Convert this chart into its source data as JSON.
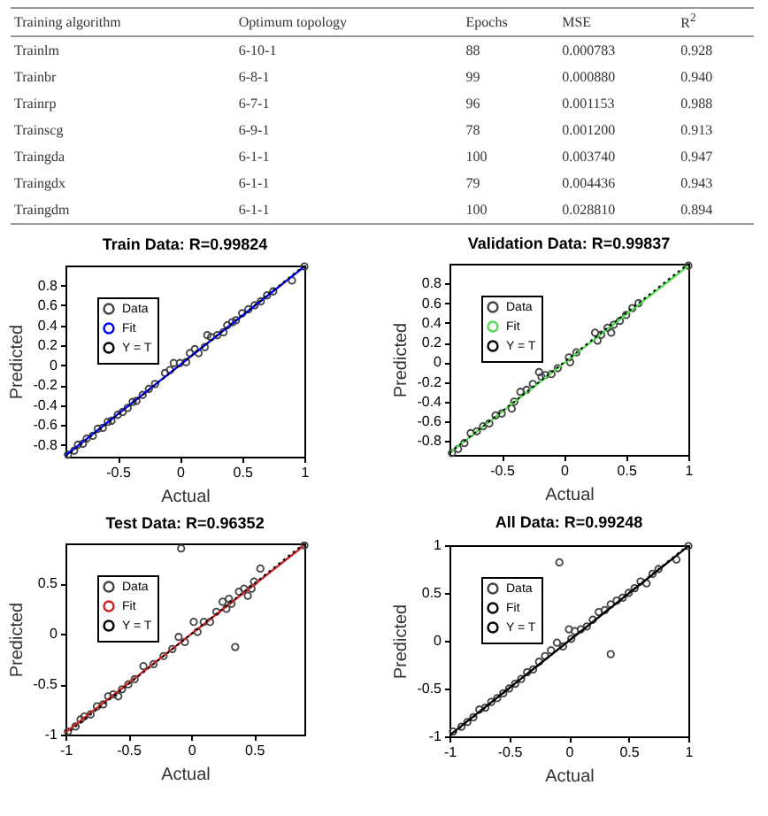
{
  "chart_data": [
    {
      "type": "other",
      "annotations": [
        "Training algorithm",
        "Optimum topology",
        "Epochs",
        "MSE",
        "R$^{2}$",
        "Trainlm",
        "6-10-1",
        "88",
        "0.000783",
        "0.928",
        "Trainbr",
        "6-8-1",
        "99",
        "0.000880",
        "0.940",
        "Trainrp",
        "6-7-1",
        "96",
        "0.001153",
        "0.988",
        "Trainscg",
        "6-9-1",
        "78",
        "0.001200",
        "0.913",
        "Traingda",
        "6-1-1",
        "100",
        "0.003740",
        "0.947",
        "Traingdx",
        "6-1-1",
        "79",
        "0.004436",
        "0.943",
        "Traingdm",
        "6-1-1",
        "100",
        "0.028810",
        "0.894"
      ]
    },
    {
      "type": "scatter",
      "title": "Train Data: R=0.99824",
      "xlabel": "Actual",
      "ylabel": "Predicted",
      "xlim": [
        -0.92,
        1
      ],
      "ylim": [
        -0.92,
        1
      ],
      "xticks": [
        -0.5,
        0,
        0.5,
        1
      ],
      "yticks": [
        -0.8,
        -0.6,
        -0.4,
        -0.2,
        0,
        0.2,
        0.4,
        0.6,
        0.8
      ],
      "legend": "top left",
      "x": [
        -0.9,
        -0.85,
        -0.82,
        -0.78,
        -0.75,
        -0.7,
        -0.66,
        -0.62,
        -0.58,
        -0.55,
        -0.5,
        -0.46,
        -0.42,
        -0.38,
        -0.35,
        -0.3,
        -0.25,
        -0.2,
        -0.12,
        -0.08,
        -0.05,
        0,
        0.05,
        0.08,
        0.12,
        0.15,
        0.2,
        0.22,
        0.25,
        0.3,
        0.35,
        0.38,
        0.42,
        0.45,
        0.5,
        0.55,
        0.6,
        0.65,
        0.7,
        0.75,
        0.9,
        1
      ],
      "series": [
        {
          "name": "Data",
          "type": "scatter",
          "color": "#444444",
          "marker": "circle",
          "values": [
            -0.9,
            -0.86,
            -0.8,
            -0.79,
            -0.74,
            -0.71,
            -0.64,
            -0.63,
            -0.57,
            -0.56,
            -0.5,
            -0.47,
            -0.43,
            -0.37,
            -0.36,
            -0.3,
            -0.24,
            -0.19,
            -0.08,
            -0.05,
            0.02,
            0.02,
            0.03,
            0.12,
            0.16,
            0.12,
            0.18,
            0.3,
            0.28,
            0.3,
            0.33,
            0.4,
            0.43,
            0.45,
            0.52,
            0.56,
            0.6,
            0.64,
            0.7,
            0.74,
            0.85,
            0.99
          ]
        },
        {
          "name": "Fit",
          "type": "line",
          "color": "#0000ff",
          "line_style": "solid",
          "x": [
            -0.92,
            1
          ],
          "values": [
            -0.91,
            0.99
          ]
        },
        {
          "name": "Y = T",
          "type": "line",
          "color": "#000000",
          "line_style": "dotted",
          "x": [
            -0.92,
            1
          ],
          "values": [
            -0.92,
            1
          ]
        }
      ]
    },
    {
      "type": "scatter",
      "title": "Validation Data: R=0.99837",
      "xlabel": "Actual",
      "ylabel": "Predicted",
      "xlim": [
        -0.92,
        1
      ],
      "ylim": [
        -0.94,
        1
      ],
      "xticks": [
        -0.5,
        0,
        0.5,
        1
      ],
      "yticks": [
        -0.8,
        -0.6,
        -0.4,
        -0.2,
        0,
        0.2,
        0.4,
        0.6,
        0.8
      ],
      "legend": "top left",
      "x": [
        -0.9,
        -0.85,
        -0.8,
        -0.75,
        -0.7,
        -0.65,
        -0.6,
        -0.55,
        -0.5,
        -0.42,
        -0.4,
        -0.35,
        -0.3,
        -0.25,
        -0.2,
        -0.18,
        -0.15,
        -0.1,
        -0.05,
        0.04,
        0.05,
        0.1,
        0.25,
        0.27,
        0.3,
        0.35,
        0.38,
        0.4,
        0.45,
        0.5,
        0.55,
        0.6,
        1
      ],
      "series": [
        {
          "name": "Data",
          "type": "scatter",
          "color": "#444444",
          "marker": "circle",
          "values": [
            -0.92,
            -0.88,
            -0.82,
            -0.72,
            -0.7,
            -0.65,
            -0.62,
            -0.54,
            -0.52,
            -0.47,
            -0.4,
            -0.3,
            -0.28,
            -0.22,
            -0.1,
            -0.15,
            -0.13,
            -0.12,
            -0.06,
            0.05,
            0,
            0.1,
            0.3,
            0.22,
            0.28,
            0.35,
            0.3,
            0.38,
            0.42,
            0.48,
            0.55,
            0.6,
            0.98
          ]
        },
        {
          "name": "Fit",
          "type": "line",
          "color": "#55dd55",
          "line_style": "solid",
          "x": [
            -0.92,
            1
          ],
          "values": [
            -0.92,
            0.98
          ]
        },
        {
          "name": "Y = T",
          "type": "line",
          "color": "#000000",
          "line_style": "dotted",
          "x": [
            -0.92,
            1
          ],
          "values": [
            -0.92,
            1
          ]
        }
      ]
    },
    {
      "type": "scatter",
      "title": "Test Data: R=0.96352",
      "xlabel": "Actual",
      "ylabel": "Predicted",
      "xlim": [
        -1,
        0.9
      ],
      "ylim": [
        -1,
        0.9
      ],
      "xticks": [
        -1,
        -0.5,
        0,
        0.5
      ],
      "yticks": [
        -1,
        -0.5,
        0,
        0.5
      ],
      "legend": "top left",
      "x": [
        -0.98,
        -0.92,
        -0.88,
        -0.85,
        -0.8,
        -0.75,
        -0.7,
        -0.66,
        -0.62,
        -0.58,
        -0.55,
        -0.5,
        -0.45,
        -0.38,
        -0.3,
        -0.22,
        -0.15,
        -0.1,
        -0.08,
        -0.05,
        0.02,
        0.05,
        0.1,
        0.15,
        0.2,
        0.25,
        0.28,
        0.3,
        0.32,
        0.35,
        0.38,
        0.42,
        0.45,
        0.48,
        0.5,
        0.55,
        0.9
      ],
      "series": [
        {
          "name": "Data",
          "type": "scatter",
          "color": "#444444",
          "marker": "circle",
          "values": [
            -0.97,
            -0.92,
            -0.85,
            -0.82,
            -0.8,
            -0.72,
            -0.7,
            -0.62,
            -0.6,
            -0.62,
            -0.55,
            -0.5,
            -0.45,
            -0.32,
            -0.3,
            -0.22,
            -0.15,
            -0.03,
            0.85,
            -0.08,
            0.12,
            0.02,
            0.12,
            0.12,
            0.22,
            0.32,
            0.25,
            0.35,
            0.3,
            -0.13,
            0.42,
            0.45,
            0.38,
            0.45,
            0.52,
            0.65,
            0.88
          ]
        },
        {
          "name": "Fit",
          "type": "line",
          "color": "#cc2222",
          "line_style": "solid",
          "x": [
            -1,
            0.9
          ],
          "values": [
            -0.98,
            0.88
          ]
        },
        {
          "name": "Y = T",
          "type": "line",
          "color": "#000000",
          "line_style": "dotted",
          "x": [
            -1,
            0.9
          ],
          "values": [
            -1,
            0.9
          ]
        }
      ]
    },
    {
      "type": "scatter",
      "title": "All Data: R=0.99248",
      "xlabel": "Actual",
      "ylabel": "Predicted",
      "xlim": [
        -1,
        1
      ],
      "ylim": [
        -1,
        1
      ],
      "xticks": [
        -1,
        -0.5,
        0,
        0.5,
        1
      ],
      "yticks": [
        -1,
        -0.5,
        0,
        0.5,
        1
      ],
      "legend": "top left",
      "x": [
        -0.97,
        -0.9,
        -0.85,
        -0.8,
        -0.75,
        -0.7,
        -0.65,
        -0.6,
        -0.55,
        -0.5,
        -0.45,
        -0.4,
        -0.35,
        -0.3,
        -0.25,
        -0.2,
        -0.15,
        -0.1,
        -0.08,
        -0.05,
        0,
        0.02,
        0.05,
        0.1,
        0.15,
        0.2,
        0.25,
        0.3,
        0.35,
        0.35,
        0.4,
        0.45,
        0.5,
        0.55,
        0.6,
        0.65,
        0.7,
        0.75,
        0.9,
        1
      ],
      "series": [
        {
          "name": "Data",
          "type": "scatter",
          "color": "#444444",
          "marker": "circle",
          "values": [
            -0.95,
            -0.9,
            -0.85,
            -0.8,
            -0.72,
            -0.7,
            -0.64,
            -0.6,
            -0.55,
            -0.5,
            -0.45,
            -0.4,
            -0.33,
            -0.3,
            -0.22,
            -0.16,
            -0.1,
            -0.02,
            0.82,
            -0.06,
            0.12,
            0.02,
            0.1,
            0.12,
            0.15,
            0.22,
            0.3,
            0.32,
            0.38,
            -0.14,
            0.42,
            0.45,
            0.5,
            0.55,
            0.62,
            0.6,
            0.7,
            0.75,
            0.85,
            0.99
          ]
        },
        {
          "name": "Fit",
          "type": "line",
          "color": "#000000",
          "line_style": "solid",
          "x": [
            -1,
            1
          ],
          "values": [
            -0.99,
            0.99
          ]
        },
        {
          "name": "Y = T",
          "type": "line",
          "color": "#000000",
          "line_style": "dotted",
          "x": [
            -1,
            1
          ],
          "values": [
            -1,
            1
          ]
        }
      ]
    }
  ]
}
